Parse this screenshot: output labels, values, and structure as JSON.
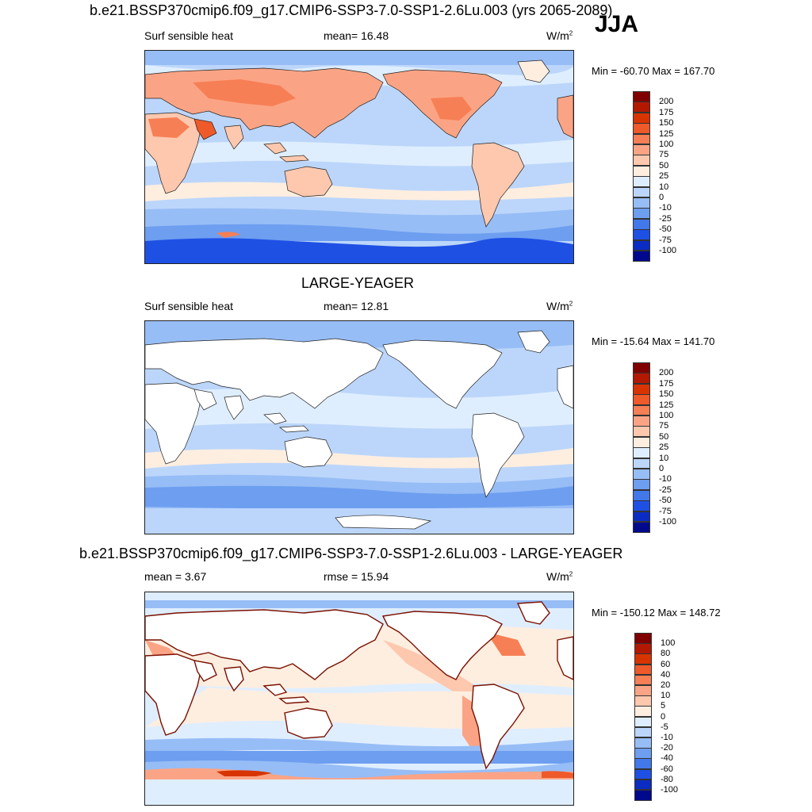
{
  "season": "JJA",
  "panels": [
    {
      "title": "b.e21.BSSP370cmip6.f09_g17.CMIP6-SSP3-7.0-SSP1-2.6Lu.003 (yrs 2065-2089)",
      "left_label": "Surf sensible heat",
      "stat_label": "mean=  16.48",
      "units": "W/m",
      "units_sup": "2",
      "minmax": "Min = -60.70 Max = 167.70",
      "map_type": "model"
    },
    {
      "title": "LARGE-YEAGER",
      "left_label": "Surf sensible heat",
      "stat_label": "mean=  12.81",
      "units": "W/m",
      "units_sup": "2",
      "minmax": "Min = -15.64 Max = 141.70",
      "map_type": "obs"
    },
    {
      "title": "b.e21.BSSP370cmip6.f09_g17.CMIP6-SSP3-7.0-SSP1-2.6Lu.003 - LARGE-YEAGER",
      "left_label": "mean =   3.67",
      "stat_label": "rmse =  15.94",
      "units": "W/m",
      "units_sup": "2",
      "minmax": "Min = -150.12 Max = 148.72",
      "map_type": "diff"
    }
  ],
  "colorbars": {
    "abs": {
      "labels": [
        "200",
        "175",
        "150",
        "125",
        "100",
        "75",
        "50",
        "25",
        "10",
        "0",
        "-10",
        "-25",
        "-50",
        "-75",
        "-100"
      ],
      "colors": [
        "#800000",
        "#b31900",
        "#d83400",
        "#ee5a2a",
        "#f77f55",
        "#fba485",
        "#fdc8ae",
        "#feeee0",
        "#dfeeff",
        "#bcd6fb",
        "#97bdf6",
        "#6d9ef0",
        "#4278ea",
        "#1f50e4",
        "#0b2cc2",
        "#00098c"
      ]
    },
    "diff": {
      "labels": [
        "100",
        "80",
        "60",
        "40",
        "20",
        "10",
        "5",
        "0",
        "-5",
        "-10",
        "-20",
        "-40",
        "-60",
        "-80",
        "-100"
      ],
      "colors": [
        "#800000",
        "#b31900",
        "#d83400",
        "#ee5a2a",
        "#f77f55",
        "#fba485",
        "#fdc8ae",
        "#feeee0",
        "#dfeeff",
        "#bcd6fb",
        "#97bdf6",
        "#6d9ef0",
        "#4278ea",
        "#1f50e4",
        "#0b2cc2",
        "#00098c"
      ]
    }
  }
}
